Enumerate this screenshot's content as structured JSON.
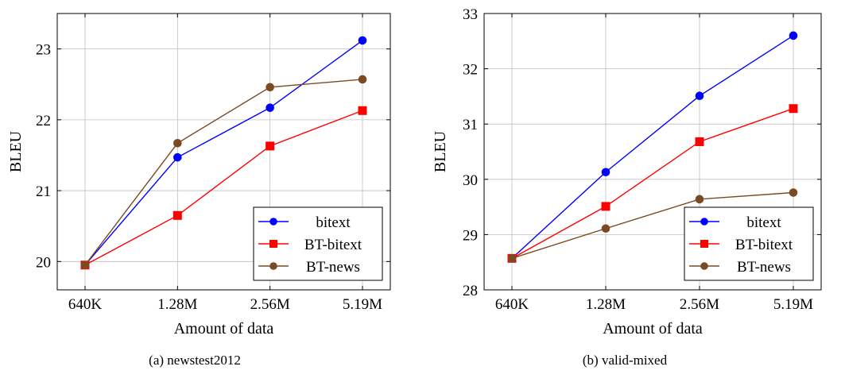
{
  "colors": {
    "bitext": "#0000ff",
    "BT-bitext": "#ff0000",
    "BT-news": "#7a4a22",
    "grid": "#bfbfbf"
  },
  "chart_data": [
    {
      "type": "line",
      "caption": "(a) newstest2012",
      "xlabel": "Amount of data",
      "ylabel": "BLEU",
      "categories": [
        "640K",
        "1.28M",
        "2.56M",
        "5.19M"
      ],
      "yticks": [
        20,
        21,
        22,
        23
      ],
      "ylim": [
        19.6,
        23.5
      ],
      "grid": true,
      "legend_position": "bottom-right",
      "series": [
        {
          "name": "bitext",
          "marker": "circle",
          "values": [
            19.95,
            21.47,
            22.17,
            23.12
          ]
        },
        {
          "name": "BT-bitext",
          "marker": "square",
          "values": [
            19.95,
            20.65,
            21.63,
            22.13
          ]
        },
        {
          "name": "BT-news",
          "marker": "circle",
          "values": [
            19.95,
            21.67,
            22.46,
            22.57
          ]
        }
      ]
    },
    {
      "type": "line",
      "caption": "(b) valid-mixed",
      "xlabel": "Amount of data",
      "ylabel": "BLEU",
      "categories": [
        "640K",
        "1.28M",
        "2.56M",
        "5.19M"
      ],
      "yticks": [
        28,
        29,
        30,
        31,
        32,
        33
      ],
      "ylim": [
        28,
        33
      ],
      "grid": true,
      "legend_position": "bottom-right",
      "series": [
        {
          "name": "bitext",
          "marker": "circle",
          "values": [
            28.57,
            30.13,
            31.51,
            32.6
          ]
        },
        {
          "name": "BT-bitext",
          "marker": "square",
          "values": [
            28.57,
            29.51,
            30.68,
            31.28
          ]
        },
        {
          "name": "BT-news",
          "marker": "circle",
          "values": [
            28.57,
            29.11,
            29.64,
            29.76
          ]
        }
      ]
    }
  ]
}
